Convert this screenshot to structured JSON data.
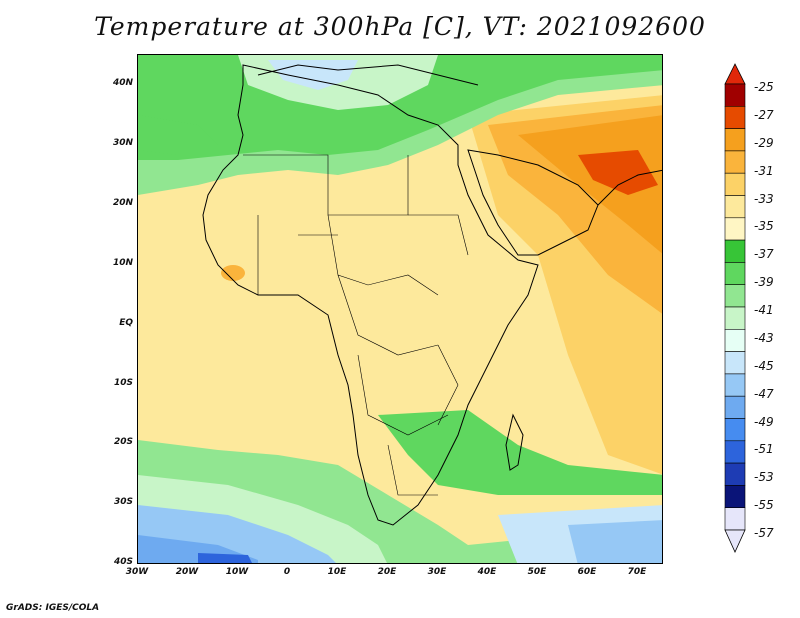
{
  "title": "Temperature at 300hPa [C], VT: 2021092600",
  "map": {
    "lat_labels": [
      "40N",
      "30N",
      "20N",
      "10N",
      "EQ",
      "10S",
      "20S",
      "30S",
      "40S"
    ],
    "lon_labels": [
      "30W",
      "20W",
      "10W",
      "0",
      "10E",
      "20E",
      "30E",
      "40E",
      "50E",
      "60E",
      "70E"
    ],
    "lat_range": [
      -40,
      45
    ],
    "lon_range": [
      -30,
      75
    ],
    "region": "Africa, Arabian Peninsula and Indian Ocean"
  },
  "colorbar": {
    "labels": [
      "-25",
      "-27",
      "-29",
      "-31",
      "-33",
      "-35",
      "-37",
      "-39",
      "-41",
      "-43",
      "-45",
      "-47",
      "-49",
      "-51",
      "-53",
      "-55",
      "-57"
    ],
    "colors": [
      "#a00000",
      "#e64b00",
      "#f5a01e",
      "#fab43c",
      "#fcd267",
      "#fde99c",
      "#fff6c4",
      "#37c537",
      "#5fd75f",
      "#91e691",
      "#c8f5c8",
      "#e6fff5",
      "#c8e6fa",
      "#96c8f5",
      "#6eaaf0",
      "#468cf0",
      "#2d64dc",
      "#1e3cb4",
      "#0a1478",
      "#e6e6fa"
    ],
    "arrow_top_color": "#e1280a",
    "arrow_bottom_color": "#e6e6fa"
  },
  "footer": "GrADS: IGES/COLA"
}
